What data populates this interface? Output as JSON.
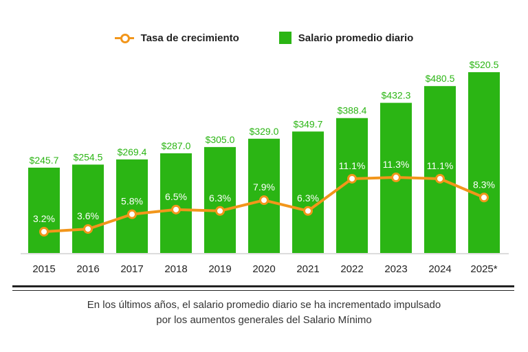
{
  "legend": {
    "line_label": "Tasa de crecimiento",
    "bar_label": "Salario promedio diario"
  },
  "colors": {
    "bar": "#2bb514",
    "line": "#f2961b",
    "bar_label": "#2bb514",
    "text": "#222222"
  },
  "chart_data": {
    "type": "bar",
    "categories": [
      "2015",
      "2016",
      "2017",
      "2018",
      "2019",
      "2020",
      "2021",
      "2022",
      "2023",
      "2024",
      "2025*"
    ],
    "series": [
      {
        "name": "Salario promedio diario",
        "type": "bar",
        "values": [
          245.7,
          254.5,
          269.4,
          287.0,
          305.0,
          329.0,
          349.7,
          388.4,
          432.3,
          480.5,
          520.5
        ],
        "labels": [
          "$245.7",
          "$254.5",
          "$269.4",
          "$287.0",
          "$305.0",
          "$329.0",
          "$349.7",
          "$388.4",
          "$432.3",
          "$480.5",
          "$520.5"
        ]
      },
      {
        "name": "Tasa de crecimiento",
        "type": "line",
        "values": [
          3.2,
          3.6,
          5.8,
          6.5,
          6.3,
          7.9,
          6.3,
          11.1,
          11.3,
          11.1,
          8.3
        ],
        "labels": [
          "3.2%",
          "3.6%",
          "5.8%",
          "6.5%",
          "6.3%",
          "7.9%",
          "6.3%",
          "11.1%",
          "11.3%",
          "11.1%",
          "8.3%"
        ]
      }
    ],
    "xlabel": "",
    "ylabel": "",
    "grid": false,
    "legend_position": "top-center"
  },
  "footnote": {
    "line1": "En los últimos años, el salario promedio diario se ha incrementado impulsado",
    "line2": "por los aumentos generales del Salario Mínimo"
  }
}
